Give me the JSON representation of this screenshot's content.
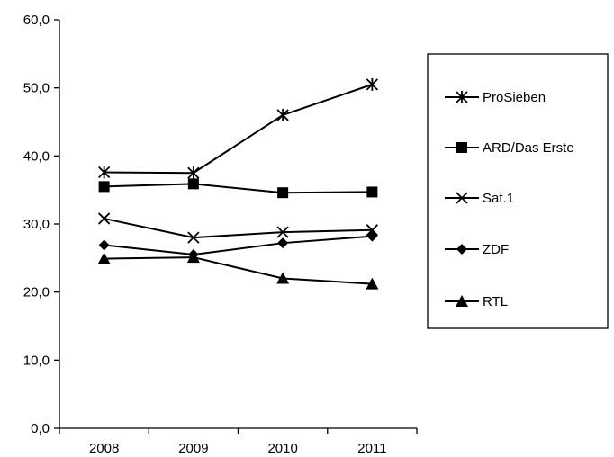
{
  "chart_data": {
    "type": "line",
    "title": "",
    "xlabel": "",
    "ylabel": "",
    "categories": [
      "2008",
      "2009",
      "2010",
      "2011"
    ],
    "ylim": [
      0,
      60
    ],
    "yticks": [
      0,
      10,
      20,
      30,
      40,
      50,
      60
    ],
    "ytick_labels": [
      "0,0",
      "10,0",
      "20,0",
      "30,0",
      "40,0",
      "50,0",
      "60,0"
    ],
    "grid": false,
    "legend_position": "right",
    "series": [
      {
        "name": "ProSieben",
        "marker": "star",
        "values": [
          37.6,
          37.5,
          46.0,
          50.5
        ]
      },
      {
        "name": "ARD/Das Erste",
        "marker": "square",
        "values": [
          35.5,
          35.9,
          34.6,
          34.7
        ]
      },
      {
        "name": "Sat.1",
        "marker": "x",
        "values": [
          30.8,
          28.0,
          28.8,
          29.1
        ]
      },
      {
        "name": "ZDF",
        "marker": "diamond",
        "values": [
          26.9,
          25.5,
          27.2,
          28.2
        ]
      },
      {
        "name": "RTL",
        "marker": "triangle",
        "values": [
          24.9,
          25.1,
          22.0,
          21.2
        ]
      }
    ]
  }
}
